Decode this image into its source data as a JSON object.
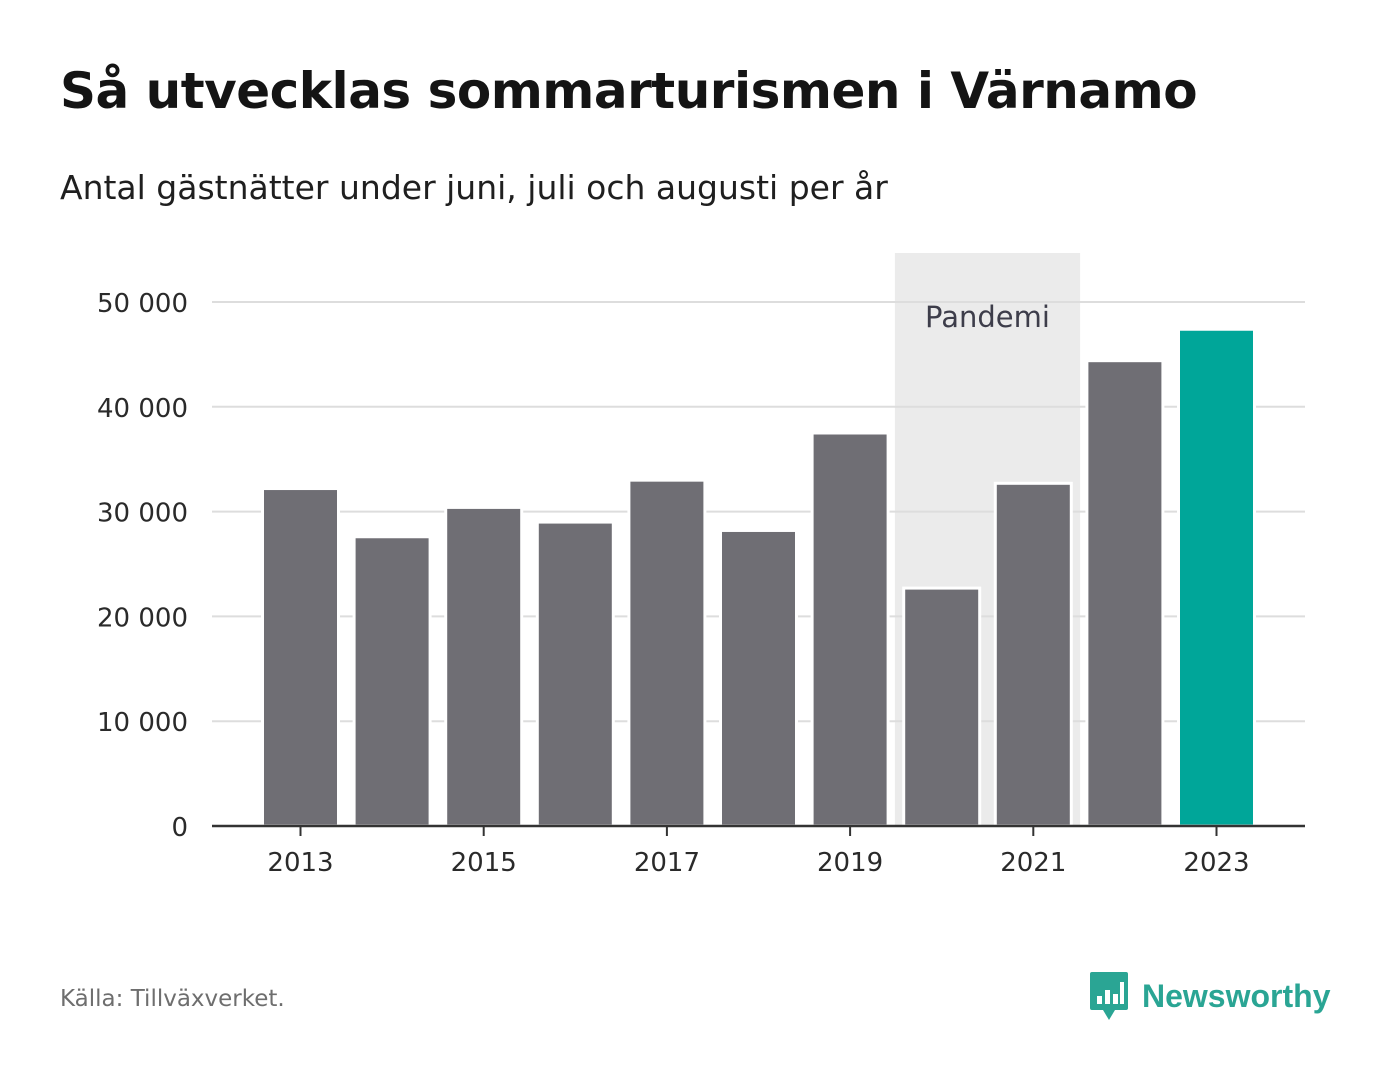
{
  "title": "Så utvecklas sommarturismen i Värnamo",
  "subtitle": "Antal gästnätter under juni, juli och augusti per år",
  "source": "Källa: Tillväxverket.",
  "brand": {
    "name": "Newsworthy",
    "icon": "newsworthy-logo-icon",
    "color": "#2aa594"
  },
  "colors": {
    "bar": "#6f6e74",
    "highlight": "#00a699",
    "band": "#ebebeb",
    "grid": "#dddddd",
    "axis": "#333333"
  },
  "chart_data": {
    "type": "bar",
    "categories": [
      "2013",
      "2014",
      "2015",
      "2016",
      "2017",
      "2018",
      "2019",
      "2020",
      "2021",
      "2022",
      "2023"
    ],
    "values": [
      32200,
      27600,
      30400,
      29000,
      33000,
      28200,
      37500,
      22700,
      32700,
      44400,
      47400
    ],
    "highlight_category": "2023",
    "ylim": [
      0,
      50000
    ],
    "yticks": [
      0,
      10000,
      20000,
      30000,
      40000,
      50000
    ],
    "ytick_labels": [
      "0",
      "10 000",
      "20 000",
      "30 000",
      "40 000",
      "50 000"
    ],
    "xtick_labels": [
      "2013",
      "2015",
      "2017",
      "2019",
      "2021",
      "2023"
    ],
    "grid": true,
    "annotation": {
      "label": "Pandemi",
      "from": "2020",
      "to": "2021"
    },
    "title": "Så utvecklas sommarturismen i Värnamo",
    "xlabel": "",
    "ylabel": ""
  }
}
